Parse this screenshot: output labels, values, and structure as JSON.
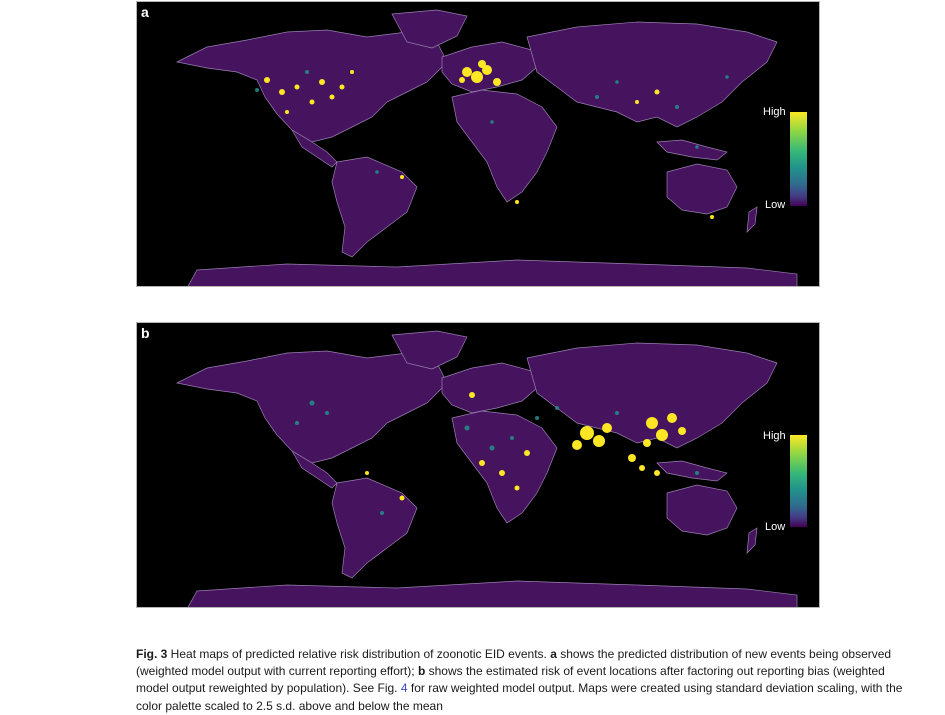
{
  "panels": [
    {
      "id": "a",
      "letter": "a",
      "legend_high": "High",
      "legend_low": "Low"
    },
    {
      "id": "b",
      "letter": "b",
      "legend_high": "High",
      "legend_low": "Low"
    }
  ],
  "colors": {
    "land": "#46145e",
    "border": "#9a7fb2",
    "ocean": "#000000",
    "low": "#440154",
    "mid": "#21918c",
    "high": "#fde725"
  },
  "caption": {
    "fig_label": "Fig. 3",
    "text_1": " Heat maps of predicted relative risk distribution of zoonotic EID events. ",
    "a_label": "a",
    "text_2": " shows the predicted distribution of new events being observed (weighted model output with current reporting effort); ",
    "b_label": "b",
    "text_3": " shows the estimated risk of event locations after factoring out reporting bias (weighted model output reweighted by population). See Fig. ",
    "fig_ref": "4",
    "text_4": " for raw weighted model output. Maps were created using standard deviation scaling, with the color palette scaled to 2.5 s.d. above and below the mean"
  }
}
